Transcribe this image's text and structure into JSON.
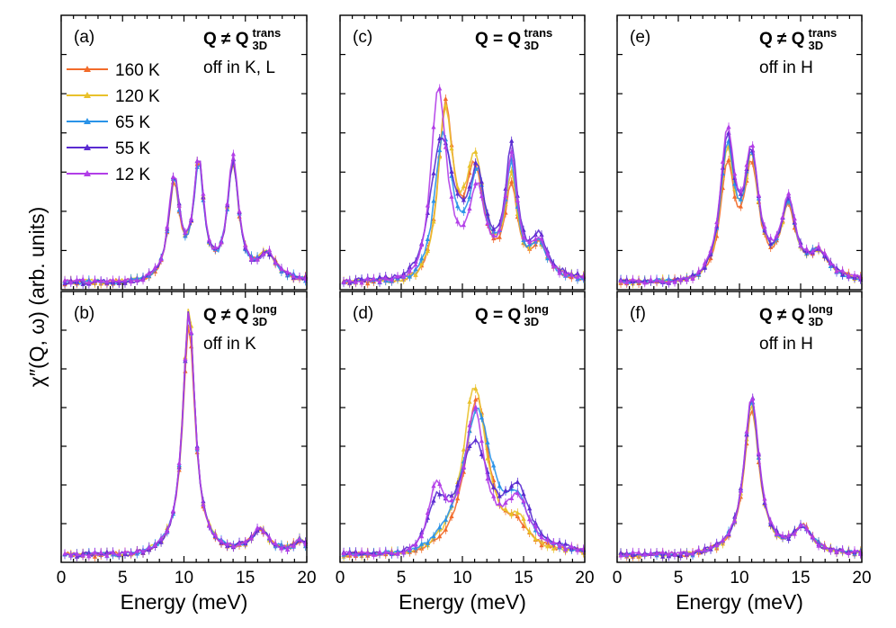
{
  "chart_data": {
    "type": "line",
    "xlabel": "Energy (meV)",
    "ylabel": "χ″(Q, ω) (arb. units)",
    "xlim": [
      0,
      20
    ],
    "xticks": [
      0,
      5,
      10,
      15,
      20
    ],
    "ylim": [
      0,
      1
    ],
    "series_styles": [
      {
        "name": "160 K",
        "color": "#f26b2a",
        "marker": "triangle-up"
      },
      {
        "name": "120 K",
        "color": "#e9c12b",
        "marker": "triangle-up"
      },
      {
        "name": "65 K",
        "color": "#2a93e8",
        "marker": "triangle-up"
      },
      {
        "name": "55 K",
        "color": "#5a2bd1",
        "marker": "triangle-up"
      },
      {
        "name": "12 K",
        "color": "#b23ee8",
        "marker": "triangle-up"
      }
    ],
    "panels": [
      {
        "id": "a",
        "letter": "(a)",
        "ann_bold": "Q ≠ Q",
        "ann_sup": "trans",
        "ann_sub": "3D",
        "ann_line2": "off in K, L",
        "peaks": [
          [
            [
              9.2,
              0.38,
              0.55
            ],
            [
              11.2,
              0.44,
              0.5
            ],
            [
              14.0,
              0.45,
              0.55
            ],
            [
              16.8,
              0.1,
              0.9
            ]
          ],
          [
            [
              9.2,
              0.4,
              0.55
            ],
            [
              11.2,
              0.45,
              0.5
            ],
            [
              14.0,
              0.46,
              0.55
            ],
            [
              16.8,
              0.1,
              0.9
            ]
          ],
          [
            [
              9.2,
              0.39,
              0.55
            ],
            [
              11.2,
              0.44,
              0.5
            ],
            [
              14.0,
              0.45,
              0.55
            ],
            [
              16.8,
              0.1,
              0.9
            ]
          ],
          [
            [
              9.2,
              0.4,
              0.55
            ],
            [
              11.2,
              0.45,
              0.5
            ],
            [
              14.0,
              0.46,
              0.55
            ],
            [
              16.8,
              0.1,
              0.9
            ]
          ],
          [
            [
              9.2,
              0.41,
              0.55
            ],
            [
              11.2,
              0.46,
              0.5
            ],
            [
              14.0,
              0.47,
              0.55
            ],
            [
              16.8,
              0.1,
              0.9
            ]
          ]
        ]
      },
      {
        "id": "b",
        "letter": "(b)",
        "ann_bold": "Q ≠ Q",
        "ann_sup": "long",
        "ann_sub": "3D",
        "ann_line2": "off in K",
        "peaks": [
          [
            [
              10.4,
              0.93,
              0.6
            ],
            [
              16.2,
              0.09,
              0.9
            ],
            [
              19.5,
              0.05,
              0.6
            ]
          ],
          [
            [
              10.4,
              1.0,
              0.6
            ],
            [
              16.2,
              0.09,
              0.9
            ],
            [
              19.5,
              0.05,
              0.6
            ]
          ],
          [
            [
              10.4,
              0.97,
              0.6
            ],
            [
              16.2,
              0.09,
              0.9
            ],
            [
              19.5,
              0.05,
              0.6
            ]
          ],
          [
            [
              10.4,
              0.98,
              0.6
            ],
            [
              16.2,
              0.09,
              0.9
            ],
            [
              19.5,
              0.05,
              0.6
            ]
          ],
          [
            [
              10.4,
              0.99,
              0.6
            ],
            [
              16.2,
              0.09,
              0.9
            ],
            [
              19.5,
              0.05,
              0.6
            ]
          ]
        ]
      },
      {
        "id": "c",
        "letter": "(c)",
        "ann_bold": "Q = Q",
        "ann_sup": "trans",
        "ann_sub": "3D",
        "ann_line2": "",
        "peaks": [
          [
            [
              8.6,
              0.7,
              0.75
            ],
            [
              11.0,
              0.4,
              0.9
            ],
            [
              14.0,
              0.34,
              0.6
            ],
            [
              16.3,
              0.12,
              0.8
            ]
          ],
          [
            [
              8.6,
              0.68,
              0.75
            ],
            [
              11.0,
              0.45,
              0.9
            ],
            [
              14.0,
              0.38,
              0.6
            ],
            [
              16.3,
              0.12,
              0.8
            ]
          ],
          [
            [
              8.4,
              0.6,
              0.9
            ],
            [
              11.2,
              0.38,
              0.8
            ],
            [
              14.0,
              0.42,
              0.6
            ],
            [
              16.3,
              0.12,
              0.8
            ]
          ],
          [
            [
              8.2,
              0.6,
              1.3
            ],
            [
              11.2,
              0.35,
              0.8
            ],
            [
              14.0,
              0.48,
              0.6
            ],
            [
              16.3,
              0.14,
              0.8
            ]
          ],
          [
            [
              8.0,
              0.85,
              0.8
            ],
            [
              11.2,
              0.33,
              0.8
            ],
            [
              14.0,
              0.46,
              0.6
            ],
            [
              16.3,
              0.13,
              0.8
            ]
          ]
        ]
      },
      {
        "id": "d",
        "letter": "(d)",
        "ann_bold": "Q = Q",
        "ann_sup": "long",
        "ann_sub": "3D",
        "ann_line2": "",
        "peaks": [
          [
            [
              11.2,
              0.62,
              1.2
            ],
            [
              14.5,
              0.08,
              1.0
            ]
          ],
          [
            [
              11.0,
              0.67,
              1.2
            ],
            [
              14.5,
              0.1,
              1.0
            ]
          ],
          [
            [
              11.2,
              0.57,
              1.5
            ],
            [
              14.5,
              0.16,
              1.0
            ]
          ],
          [
            [
              7.8,
              0.2,
              1.0
            ],
            [
              11.0,
              0.42,
              1.5
            ],
            [
              14.5,
              0.22,
              1.2
            ]
          ],
          [
            [
              7.8,
              0.28,
              0.9
            ],
            [
              11.0,
              0.55,
              1.0
            ],
            [
              14.5,
              0.2,
              1.2
            ]
          ]
        ]
      },
      {
        "id": "e",
        "letter": "(e)",
        "ann_bold": "Q ≠ Q",
        "ann_sup": "trans",
        "ann_sub": "3D",
        "ann_line2": "off in H",
        "peaks": [
          [
            [
              9.0,
              0.45,
              0.7
            ],
            [
              11.0,
              0.42,
              0.7
            ],
            [
              14.0,
              0.27,
              0.7
            ],
            [
              16.5,
              0.1,
              1.0
            ]
          ],
          [
            [
              9.0,
              0.5,
              0.7
            ],
            [
              11.0,
              0.44,
              0.7
            ],
            [
              14.0,
              0.28,
              0.7
            ],
            [
              16.5,
              0.1,
              1.0
            ]
          ],
          [
            [
              9.0,
              0.52,
              0.7
            ],
            [
              11.0,
              0.45,
              0.7
            ],
            [
              14.0,
              0.28,
              0.7
            ],
            [
              16.5,
              0.1,
              1.0
            ]
          ],
          [
            [
              9.0,
              0.56,
              0.7
            ],
            [
              11.0,
              0.46,
              0.7
            ],
            [
              14.0,
              0.29,
              0.7
            ],
            [
              16.5,
              0.1,
              1.0
            ]
          ],
          [
            [
              9.0,
              0.58,
              0.7
            ],
            [
              11.0,
              0.47,
              0.7
            ],
            [
              14.0,
              0.3,
              0.7
            ],
            [
              16.5,
              0.1,
              1.0
            ]
          ]
        ]
      },
      {
        "id": "f",
        "letter": "(f)",
        "ann_bold": "Q ≠ Q",
        "ann_sup": "long",
        "ann_sub": "3D",
        "ann_line2": "off in H",
        "peaks": [
          [
            [
              11.0,
              0.58,
              0.75
            ],
            [
              15.2,
              0.1,
              0.9
            ]
          ],
          [
            [
              11.0,
              0.6,
              0.75
            ],
            [
              15.2,
              0.1,
              0.9
            ]
          ],
          [
            [
              11.0,
              0.62,
              0.75
            ],
            [
              15.2,
              0.1,
              0.9
            ]
          ],
          [
            [
              11.0,
              0.63,
              0.75
            ],
            [
              15.2,
              0.1,
              0.9
            ]
          ],
          [
            [
              11.0,
              0.64,
              0.75
            ],
            [
              15.2,
              0.1,
              0.9
            ]
          ]
        ]
      }
    ]
  }
}
